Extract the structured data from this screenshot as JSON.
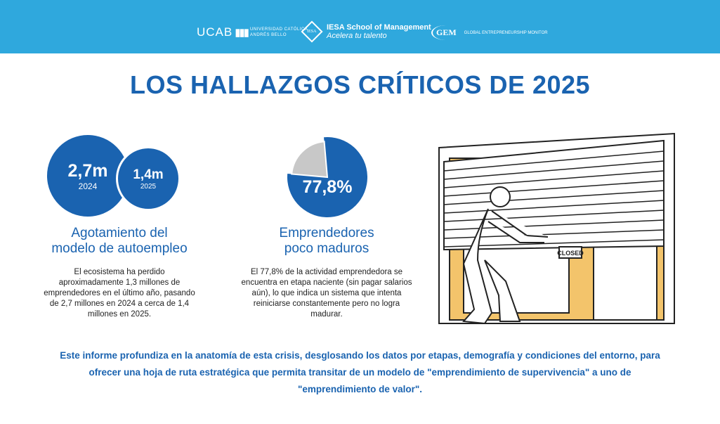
{
  "header": {
    "ucab": "UCAB",
    "ucab_sub1": "UNIVERSIDAD CATÓLICA",
    "ucab_sub2": "ANDRÉS BELLO",
    "iesa_mark": "IESA",
    "iesa_title": "IESA School of Management",
    "iesa_tagline": "Acelera tu talento",
    "gem_mark": "GEM",
    "gem_text": "GLOBAL ENTREPRENEURSHIP MONITOR"
  },
  "title": "LOS HALLAZGOS CRÍTICOS DE 2025",
  "stat1": {
    "value_2024": "2,7m",
    "year_2024": "2024",
    "value_2025": "1,4m",
    "year_2025": "2025",
    "heading_line1": "Agotamiento del",
    "heading_line2": "modelo de autoempleo",
    "description": "El ecosistema ha perdido aproximadamente 1,3 millones de emprendedores en el último año, pasando de 2,7 millones en 2024 a cerca de 1,4 millones en 2025."
  },
  "stat2": {
    "percent_label": "77,8%",
    "percent": 77.8,
    "heading_line1": "Emprendedores",
    "heading_line2": "poco maduros",
    "description": "El 77,8% de la actividad emprendedora se encuentra en etapa naciente (sin pagar salarios aún), lo que indica un sistema que intenta reiniciarse constantemente pero no logra madurar."
  },
  "illustration": {
    "sign": "CLOSED"
  },
  "footer": "Este informe profundiza en la anatomía de esta crisis, desglosando los datos por etapas, demografía y condiciones del entorno, para ofrecer una hoja de ruta estratégica que permita transitar de un modelo de \"emprendimiento de supervivencia\" a uno de \"emprendimiento de valor\".",
  "colors": {
    "brand_blue": "#1a63b0",
    "header_blue": "#2fa8dd",
    "pie_gray": "#c8c8c8"
  }
}
